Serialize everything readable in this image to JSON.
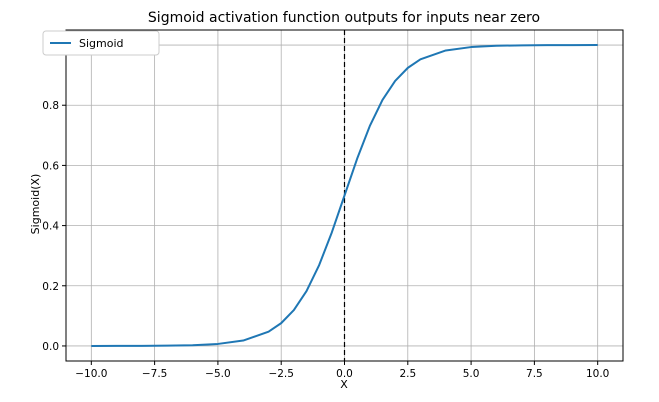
{
  "chart_data": {
    "type": "line",
    "title": "Sigmoid activation function outputs for inputs near zero",
    "xlabel": "X",
    "ylabel": "Sigmoid(X)",
    "xlim": [
      -11.0,
      11.0
    ],
    "ylim": [
      -0.05,
      1.05
    ],
    "x_ticks": [
      -10.0,
      -7.5,
      -5.0,
      -2.5,
      0.0,
      2.5,
      5.0,
      7.5,
      10.0
    ],
    "x_tick_labels": [
      "−10.0",
      "−7.5",
      "−5.0",
      "−2.5",
      "0.0",
      "2.5",
      "5.0",
      "7.5",
      "10.0"
    ],
    "y_ticks": [
      0.0,
      0.2,
      0.4,
      0.6,
      0.8,
      1.0
    ],
    "y_tick_labels": [
      "0.0",
      "0.2",
      "0.4",
      "0.6",
      "0.8",
      "1.0"
    ],
    "grid": true,
    "legend_position": "top-left",
    "series": [
      {
        "name": "Sigmoid",
        "color": "#1f77b4",
        "x": [
          -10,
          -9,
          -8,
          -7,
          -6,
          -5,
          -4,
          -3,
          -2.5,
          -2,
          -1.5,
          -1,
          -0.5,
          0,
          0.5,
          1,
          1.5,
          2,
          2.5,
          3,
          4,
          5,
          6,
          7,
          8,
          9,
          10
        ],
        "y": [
          0.0,
          0.0001,
          0.0003,
          0.0009,
          0.0025,
          0.0067,
          0.018,
          0.0474,
          0.0759,
          0.1192,
          0.1824,
          0.2689,
          0.3775,
          0.5,
          0.6225,
          0.7311,
          0.8176,
          0.8808,
          0.9241,
          0.9526,
          0.982,
          0.9933,
          0.9975,
          0.9991,
          0.9997,
          0.9999,
          1.0
        ]
      }
    ],
    "annotations": [
      {
        "type": "vline",
        "x": 0,
        "style": "dashed",
        "color": "#000000"
      }
    ]
  }
}
